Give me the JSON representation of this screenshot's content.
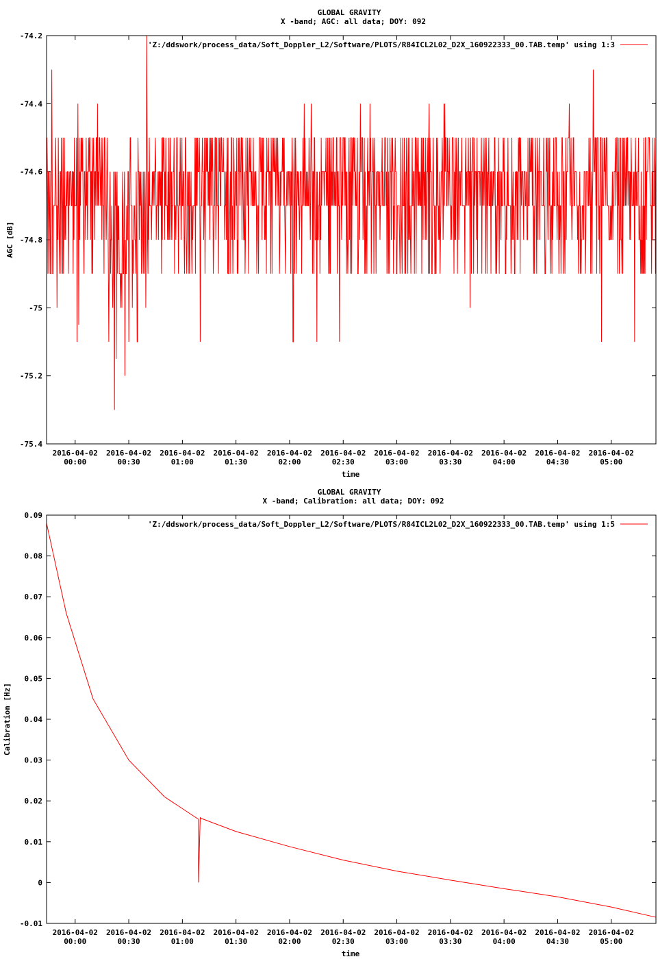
{
  "colors": {
    "series": "#ff0000",
    "axis": "#000000",
    "background": "#ffffff"
  },
  "chart_data": [
    {
      "type": "line",
      "title": "GLOBAL GRAVITY",
      "subtitle": "X -band; AGC: all data; DOY: 092",
      "xlabel": "time",
      "ylabel": "AGC [dB]",
      "ylim": [
        -75.4,
        -74.2
      ],
      "yticks": [
        -74.2,
        -74.4,
        -74.6,
        -74.8,
        -75,
        -75.2,
        -75.4
      ],
      "ytick_labels": [
        "-74.2",
        "-74.4",
        "-74.6",
        "-74.8",
        "-75",
        "-75.2",
        "-75.4"
      ],
      "xlim": [
        "2016-04-01 23:44",
        "2016-04-02 05:25"
      ],
      "xtick_dates": [
        "2016-04-02",
        "2016-04-02",
        "2016-04-02",
        "2016-04-02",
        "2016-04-02",
        "2016-04-02",
        "2016-04-02",
        "2016-04-02",
        "2016-04-02",
        "2016-04-02",
        "2016-04-02"
      ],
      "xtick_times": [
        "00:00",
        "00:30",
        "01:00",
        "01:30",
        "02:00",
        "02:30",
        "03:00",
        "03:30",
        "04:00",
        "04:30",
        "05:00"
      ],
      "legend": "top-right",
      "grid": false,
      "series": [
        {
          "name": "'Z:/ddswork/process_data/Soft_Doppler_L2/Software/PLOTS/R84ICL2L02_D2X_160922333_00.TAB.temp' using 1:3",
          "sampling": "noisy AGC samples between about -74.4 and -74.9 dB with spikes",
          "x": [
            "2016-04-01 23:44",
            "2016-04-01 23:47",
            "2016-04-02 00:00",
            "2016-04-02 00:01",
            "2016-04-02 00:02",
            "2016-04-02 00:22",
            "2016-04-02 00:23",
            "2016-04-02 00:40",
            "2016-04-02 01:10",
            "2016-04-02 02:02",
            "2016-04-02 02:28",
            "2016-04-02 04:50",
            "2016-04-02 05:25"
          ],
          "y": [
            -74.7,
            -74.3,
            -74.7,
            -75.1,
            -75.05,
            -75.3,
            -75.15,
            -74.2,
            -75.1,
            -75.1,
            -75.1,
            -74.3,
            -74.5
          ]
        }
      ]
    },
    {
      "type": "line",
      "title": "GLOBAL GRAVITY",
      "subtitle": "X -band; Calibration: all data; DOY: 092",
      "xlabel": "time",
      "ylabel": "Calibration [Hz]",
      "ylim": [
        -0.01,
        0.09
      ],
      "yticks": [
        0.09,
        0.08,
        0.07,
        0.06,
        0.05,
        0.04,
        0.03,
        0.02,
        0.01,
        0,
        -0.01
      ],
      "ytick_labels": [
        "0.09",
        "0.08",
        "0.07",
        "0.06",
        "0.05",
        "0.04",
        "0.03",
        "0.02",
        "0.01",
        "0",
        "-0.01"
      ],
      "xlim": [
        "2016-04-01 23:44",
        "2016-04-02 05:25"
      ],
      "xtick_dates": [
        "2016-04-02",
        "2016-04-02",
        "2016-04-02",
        "2016-04-02",
        "2016-04-02",
        "2016-04-02",
        "2016-04-02",
        "2016-04-02",
        "2016-04-02",
        "2016-04-02",
        "2016-04-02"
      ],
      "xtick_times": [
        "00:00",
        "00:30",
        "01:00",
        "01:30",
        "02:00",
        "02:30",
        "03:00",
        "03:30",
        "04:00",
        "04:30",
        "05:00"
      ],
      "legend": "top-right",
      "grid": false,
      "series": [
        {
          "name": "'Z:/ddswork/process_data/Soft_Doppler_L2/Software/PLOTS/R84ICL2L02_D2X_160922333_00.TAB.temp' using 1:5",
          "x": [
            "2016-04-01 23:44",
            "2016-04-01 23:55",
            "2016-04-02 00:10",
            "2016-04-02 00:30",
            "2016-04-02 00:50",
            "2016-04-02 01:09",
            "2016-04-02 01:09",
            "2016-04-02 01:10",
            "2016-04-02 01:10",
            "2016-04-02 01:30",
            "2016-04-02 02:00",
            "2016-04-02 02:30",
            "2016-04-02 03:00",
            "2016-04-02 03:30",
            "2016-04-02 04:00",
            "2016-04-02 04:30",
            "2016-04-02 05:00",
            "2016-04-02 05:25"
          ],
          "y": [
            0.088,
            0.066,
            0.045,
            0.03,
            0.021,
            0.0155,
            0.0,
            0.016,
            0.0158,
            0.0125,
            0.0088,
            0.0055,
            0.0028,
            0.0006,
            -0.0015,
            -0.0035,
            -0.006,
            -0.0085
          ]
        }
      ]
    }
  ]
}
